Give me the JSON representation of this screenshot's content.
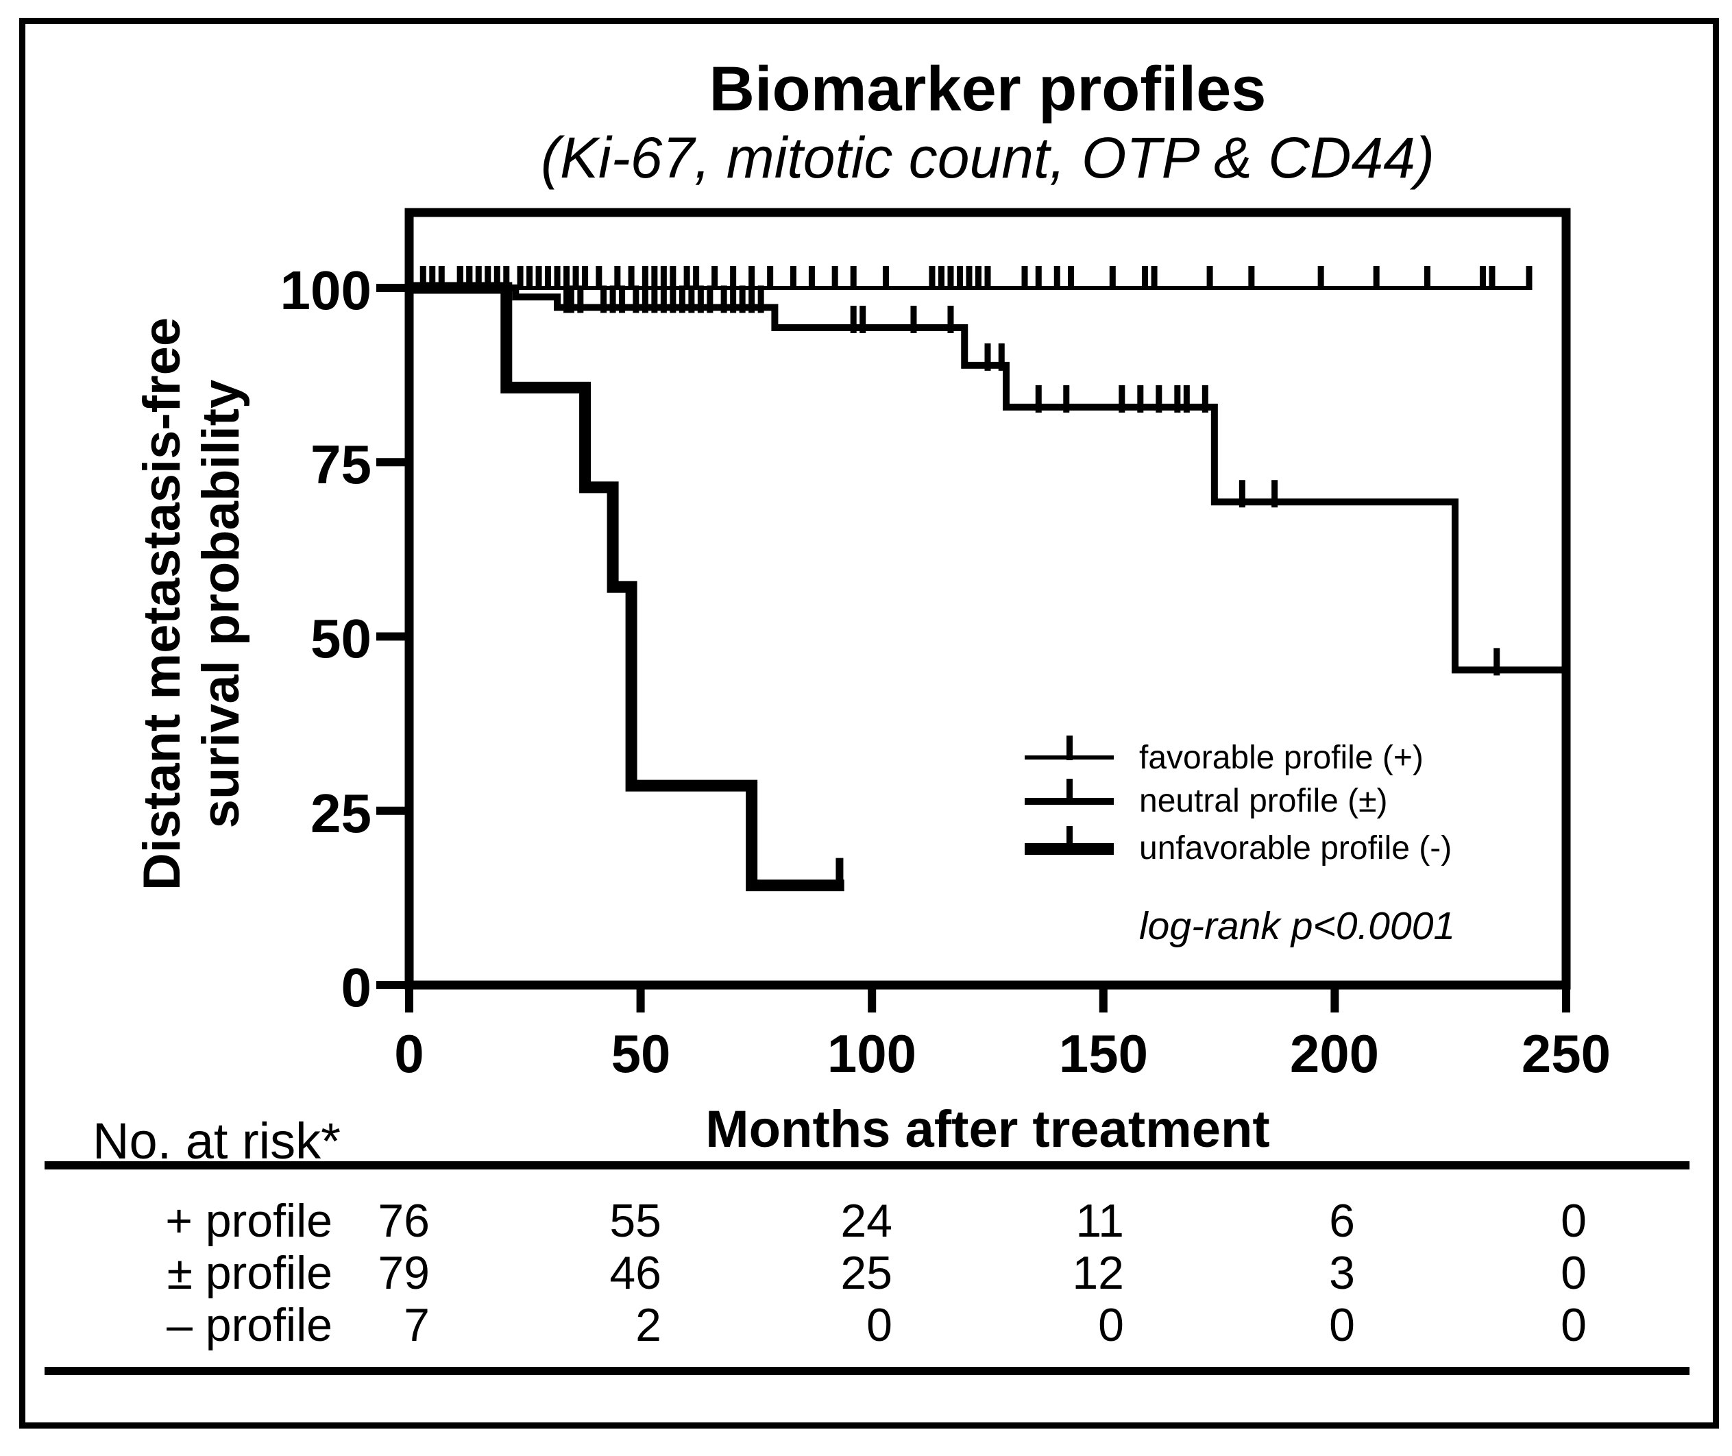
{
  "figure": {
    "title": "Biomarker profiles",
    "subtitle": "(Ki-67, mitotic count, OTP & CD44)"
  },
  "chart_data": {
    "type": "line",
    "subtype": "kaplan-meier-step",
    "title": "Biomarker profiles",
    "subtitle": "(Ki-67, mitotic count, OTP & CD44)",
    "xlabel": "Months after treatment",
    "ylabel_line1": "Distant metastasis-free",
    "ylabel_line2": "surival probability",
    "xlim": [
      0,
      250
    ],
    "ylim": [
      0,
      100
    ],
    "x_ticks": [
      0,
      50,
      100,
      150,
      200,
      250
    ],
    "y_ticks": [
      100,
      75,
      50,
      25,
      0
    ],
    "x_tick_labels": [
      "0",
      "50",
      "100",
      "150",
      "200",
      "250"
    ],
    "y_tick_labels": [
      "100",
      "75",
      "50",
      "25",
      "0"
    ],
    "grid": false,
    "legend_position": "center-right",
    "annotation": "log-rank p<0.0001",
    "series": [
      {
        "name": "favorable profile (+)",
        "line_width": 6,
        "end_t": 242,
        "steps": [
          [
            0,
            100
          ]
        ],
        "censors": [
          11,
          13,
          15,
          17,
          19,
          21,
          24,
          26,
          28,
          30,
          32,
          34,
          36,
          38,
          41,
          45,
          48,
          51,
          53,
          55,
          57,
          60,
          62,
          66,
          70,
          74,
          78,
          83,
          87,
          92,
          96,
          103,
          113,
          115,
          117,
          119,
          121,
          123,
          125,
          133,
          136,
          140,
          143,
          152,
          159,
          161,
          173,
          182,
          197,
          209,
          220,
          232,
          234,
          242
        ]
      },
      {
        "name": "neutral profile (±)",
        "line_width": 10,
        "end_t": 250,
        "steps": [
          [
            0,
            100
          ],
          [
            23,
            98.7
          ],
          [
            32,
            97.2
          ],
          [
            79,
            94.3
          ],
          [
            120,
            88.9
          ],
          [
            129,
            82.9
          ],
          [
            174,
            69.3
          ],
          [
            226,
            45.2
          ]
        ],
        "censors": [
          3,
          5,
          7,
          11,
          13,
          34,
          35,
          37,
          42,
          44,
          46,
          49,
          51,
          53,
          55,
          57,
          59,
          61,
          63,
          65,
          68,
          70,
          72,
          74,
          76,
          96,
          98,
          109,
          117,
          125,
          128,
          136,
          142,
          154,
          158,
          162,
          166,
          168,
          172,
          180,
          187,
          235
        ]
      },
      {
        "name": "unfavorable profile (-)",
        "line_width": 17,
        "end_t": 94,
        "steps": [
          [
            0,
            100
          ],
          [
            21,
            85.7
          ],
          [
            38,
            71.4
          ],
          [
            44,
            57.1
          ],
          [
            48,
            28.6
          ],
          [
            74,
            14.3
          ]
        ],
        "censors": [
          93
        ]
      }
    ]
  },
  "legend": {
    "items": [
      {
        "label": "favorable profile (+)",
        "weight": "thin"
      },
      {
        "label": "neutral profile (±)",
        "weight": "medium"
      },
      {
        "label": "unfavorable profile (-)",
        "weight": "thick"
      }
    ],
    "annotation": "log-rank p<0.0001"
  },
  "risk_table": {
    "title": "No. at risk*",
    "columns": [
      "0",
      "50",
      "100",
      "150",
      "200",
      "250"
    ],
    "rows": [
      {
        "label": "+ profile",
        "values": [
          "76",
          "55",
          "24",
          "11",
          "6",
          "0"
        ]
      },
      {
        "label": "± profile",
        "values": [
          "79",
          "46",
          "25",
          "12",
          "3",
          "0"
        ]
      },
      {
        "label": "– profile",
        "values": [
          "7",
          "2",
          "0",
          "0",
          "0",
          "0"
        ]
      }
    ]
  }
}
